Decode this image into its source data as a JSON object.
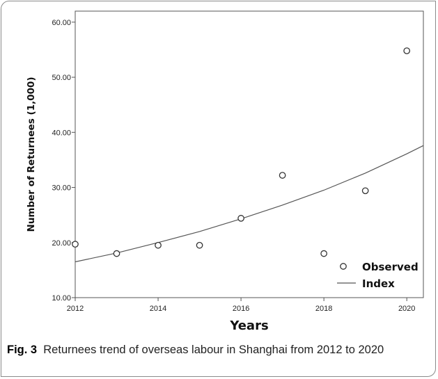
{
  "chart_data": {
    "type": "scatter",
    "xlabel": "Years",
    "ylabel": "Number of Returnees (1,000)",
    "xlim": [
      2012,
      2020.4
    ],
    "ylim": [
      10,
      62
    ],
    "x_ticks": [
      "2012",
      "2014",
      "2016",
      "2018",
      "2020"
    ],
    "y_ticks": [
      "10.00",
      "20.00",
      "30.00",
      "40.00",
      "50.00",
      "60.00"
    ],
    "series": [
      {
        "name": "Observed",
        "kind": "points",
        "x": [
          2012,
          2013,
          2014,
          2015,
          2016,
          2017,
          2018,
          2019,
          2020
        ],
        "y": [
          19.7,
          18.0,
          19.5,
          19.5,
          24.4,
          32.2,
          18.0,
          29.4,
          54.8
        ]
      },
      {
        "name": "Index",
        "kind": "line",
        "x": [
          2012,
          2013,
          2014,
          2015,
          2016,
          2017,
          2018,
          2019,
          2020,
          2020.4
        ],
        "y": [
          16.5,
          18.1,
          20.0,
          22.0,
          24.3,
          26.8,
          29.5,
          32.6,
          36.1,
          37.6
        ]
      }
    ],
    "legend_position": "bottom-right",
    "grid": false
  },
  "caption": {
    "label": "Fig. 3",
    "text": "Returnees trend of overseas labour in Shanghai from 2012 to 2020"
  }
}
